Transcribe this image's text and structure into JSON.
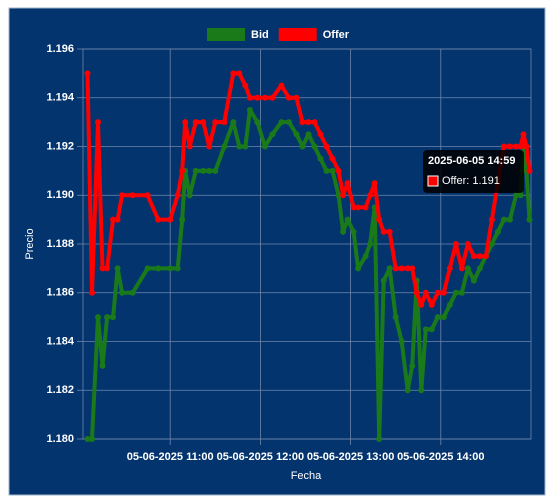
{
  "chart_data": {
    "type": "line",
    "x_label": "Fecha",
    "y_label": "Precio",
    "x": [
      "2025-06-05 10:05",
      "2025-06-05 10:08",
      "2025-06-05 10:12",
      "2025-06-05 10:15",
      "2025-06-05 10:18",
      "2025-06-05 10:22",
      "2025-06-05 10:25",
      "2025-06-05 10:28",
      "2025-06-05 10:35",
      "2025-06-05 10:45",
      "2025-06-05 10:52",
      "2025-06-05 11:00",
      "2025-06-05 11:05",
      "2025-06-05 11:08",
      "2025-06-05 11:10",
      "2025-06-05 11:13",
      "2025-06-05 11:17",
      "2025-06-05 11:22",
      "2025-06-05 11:26",
      "2025-06-05 11:30",
      "2025-06-05 11:36",
      "2025-06-05 11:42",
      "2025-06-05 11:46",
      "2025-06-05 11:50",
      "2025-06-05 11:53",
      "2025-06-05 11:58",
      "2025-06-05 12:03",
      "2025-06-05 12:08",
      "2025-06-05 12:14",
      "2025-06-05 12:19",
      "2025-06-05 12:24",
      "2025-06-05 12:28",
      "2025-06-05 12:32",
      "2025-06-05 12:36",
      "2025-06-05 12:40",
      "2025-06-05 12:44",
      "2025-06-05 12:48",
      "2025-06-05 12:52",
      "2025-06-05 12:55",
      "2025-06-05 12:58",
      "2025-06-05 13:02",
      "2025-06-05 13:05",
      "2025-06-05 13:10",
      "2025-06-05 13:13",
      "2025-06-05 13:16",
      "2025-06-05 13:19",
      "2025-06-05 13:22",
      "2025-06-05 13:26",
      "2025-06-05 13:30",
      "2025-06-05 13:34",
      "2025-06-05 13:38",
      "2025-06-05 13:41",
      "2025-06-05 13:44",
      "2025-06-05 13:47",
      "2025-06-05 13:50",
      "2025-06-05 13:54",
      "2025-06-05 13:58",
      "2025-06-05 14:02",
      "2025-06-05 14:06",
      "2025-06-05 14:10",
      "2025-06-05 14:14",
      "2025-06-05 14:18",
      "2025-06-05 14:22",
      "2025-06-05 14:26",
      "2025-06-05 14:30",
      "2025-06-05 14:34",
      "2025-06-05 14:38",
      "2025-06-05 14:42",
      "2025-06-05 14:46",
      "2025-06-05 14:50",
      "2025-06-05 14:53",
      "2025-06-05 14:55",
      "2025-06-05 14:57",
      "2025-06-05 14:59"
    ],
    "series": [
      {
        "name": "Bid",
        "color": "#1a7a1a",
        "values": [
          1.18,
          1.18,
          1.185,
          1.183,
          1.185,
          1.185,
          1.187,
          1.186,
          1.186,
          1.187,
          1.187,
          1.187,
          1.187,
          1.189,
          1.191,
          1.19,
          1.191,
          1.191,
          1.191,
          1.191,
          1.192,
          1.193,
          1.192,
          1.192,
          1.1935,
          1.193,
          1.192,
          1.1925,
          1.193,
          1.193,
          1.1925,
          1.192,
          1.1925,
          1.192,
          1.1915,
          1.191,
          1.191,
          1.19,
          1.1885,
          1.189,
          1.1885,
          1.187,
          1.1875,
          1.188,
          1.1895,
          1.18,
          1.1865,
          1.187,
          1.185,
          1.184,
          1.182,
          1.183,
          1.1865,
          1.182,
          1.1845,
          1.1845,
          1.185,
          1.185,
          1.1855,
          1.186,
          1.186,
          1.187,
          1.1865,
          1.187,
          1.1875,
          1.188,
          1.1885,
          1.189,
          1.189,
          1.19,
          1.19,
          1.192,
          1.191,
          1.189
        ]
      },
      {
        "name": "Offer",
        "color": "#ff0000",
        "values": [
          1.195,
          1.186,
          1.193,
          1.187,
          1.187,
          1.189,
          1.189,
          1.19,
          1.19,
          1.19,
          1.189,
          1.189,
          1.19,
          1.191,
          1.193,
          1.192,
          1.193,
          1.193,
          1.192,
          1.193,
          1.193,
          1.195,
          1.195,
          1.1945,
          1.194,
          1.194,
          1.194,
          1.194,
          1.1945,
          1.194,
          1.194,
          1.193,
          1.193,
          1.193,
          1.1925,
          1.192,
          1.1915,
          1.191,
          1.19,
          1.1905,
          1.1895,
          1.1895,
          1.1895,
          1.19,
          1.1905,
          1.189,
          1.1885,
          1.1885,
          1.187,
          1.187,
          1.187,
          1.187,
          1.186,
          1.1855,
          1.186,
          1.1855,
          1.186,
          1.186,
          1.187,
          1.188,
          1.187,
          1.188,
          1.1875,
          1.1875,
          1.1875,
          1.189,
          1.1905,
          1.192,
          1.192,
          1.192,
          1.192,
          1.1925,
          1.192,
          1.191
        ]
      }
    ],
    "xlim": [
      "2025-06-05 10:02",
      "2025-06-05 15:00"
    ],
    "xticks": [
      {
        "value": "2025-06-05 11:00",
        "label": "05-06-2025 11:00"
      },
      {
        "value": "2025-06-05 12:00",
        "label": "05-06-2025 12:00"
      },
      {
        "value": "2025-06-05 13:00",
        "label": "05-06-2025 13:00"
      },
      {
        "value": "2025-06-05 14:00",
        "label": "05-06-2025 14:00"
      }
    ],
    "ylim": [
      1.18,
      1.196
    ],
    "yticks": [
      {
        "value": 1.18,
        "label": "1.180"
      },
      1.182,
      1.184,
      1.186,
      1.188,
      {
        "value": 1.19,
        "label": "1.190"
      },
      1.192,
      1.194,
      1.196
    ],
    "grid": true,
    "legend": "top",
    "tooltip": {
      "title": "2025-06-05 14:59",
      "label": "Offer: 1.191"
    }
  }
}
